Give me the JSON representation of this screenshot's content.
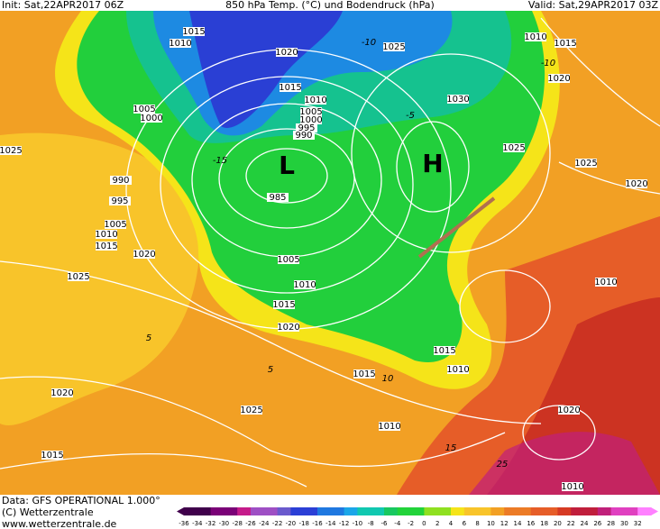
{
  "header": {
    "init": "Init: Sat,22APR2017 06Z",
    "title": "850 hPa Temp. (°C) und Bodendruck (hPa)",
    "valid": "Valid: Sat,29APR2017 03Z"
  },
  "footer": {
    "data": "Data: GFS OPERATIONAL 1.000°",
    "copyright": "(C) Wetterzentrale",
    "url": "www.wetterzentrale.de"
  },
  "colorbar": {
    "labels": [
      -36,
      -34,
      -32,
      -30,
      -28,
      -26,
      -24,
      -22,
      -20,
      -18,
      -16,
      -14,
      -12,
      -10,
      -8,
      -6,
      -4,
      -2,
      0,
      2,
      4,
      6,
      8,
      10,
      12,
      14,
      16,
      18,
      20,
      22,
      24,
      26,
      28,
      30,
      32
    ]
  },
  "pressure_centers": [
    "L",
    "H"
  ],
  "isobar_labels": [
    "1010",
    "1015",
    "1020",
    "1015",
    "1010",
    "1005",
    "1000",
    "995",
    "990",
    "985",
    "1005",
    "1000",
    "1025",
    "990",
    "995",
    "1005",
    "1010",
    "1015",
    "1020",
    "1025",
    "1005",
    "1010",
    "1015",
    "1020",
    "1025",
    "1030",
    "1025",
    "1025",
    "1020",
    "1010",
    "1015",
    "1020",
    "1010",
    "1015",
    "1010",
    "1015",
    "1020",
    "1025",
    "1010",
    "1015",
    "1020",
    "1010"
  ],
  "temperature_labels": [
    "-10",
    "-10",
    "-5",
    "-15",
    "5",
    "5",
    "10",
    "15",
    "25"
  ]
}
